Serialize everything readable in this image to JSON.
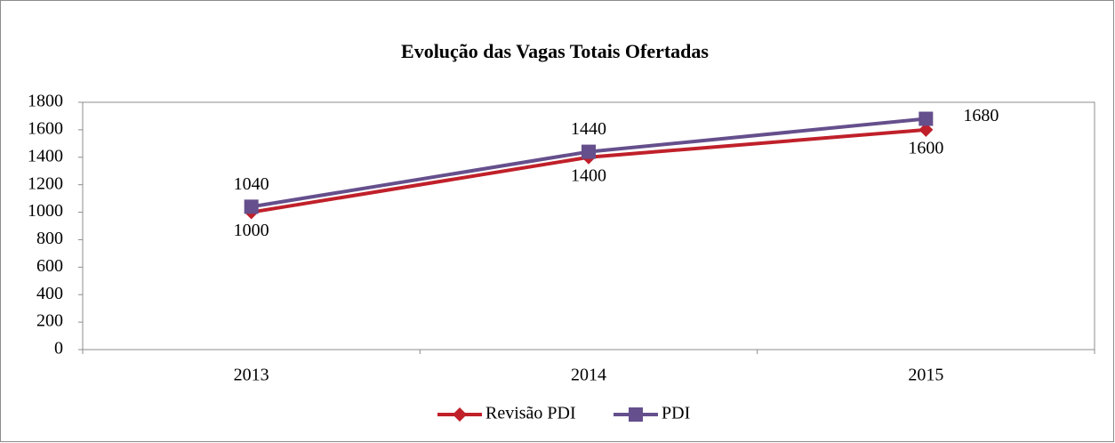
{
  "chart_data": {
    "type": "line",
    "title": "Evolução das Vagas Totais Ofertadas",
    "categories": [
      "2013",
      "2014",
      "2015"
    ],
    "series": [
      {
        "name": "Revisão PDI",
        "color": "#c0202a",
        "marker": "diamond",
        "values": [
          1000,
          1400,
          1600
        ]
      },
      {
        "name": "PDI",
        "color": "#654f8c",
        "marker": "square",
        "values": [
          1040,
          1440,
          1680
        ]
      }
    ],
    "ylim": [
      0,
      1800
    ],
    "yticks": [
      0,
      200,
      400,
      600,
      800,
      1000,
      1200,
      1400,
      1600,
      1800
    ],
    "grid": false,
    "legend": "bottom"
  }
}
